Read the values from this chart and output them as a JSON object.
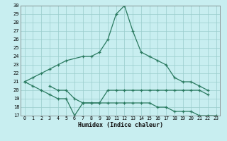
{
  "xlabel": "Humidex (Indice chaleur)",
  "line1_x": [
    0,
    1,
    2,
    3,
    4,
    5,
    7,
    8,
    9,
    10,
    11,
    12,
    13,
    14,
    15,
    16,
    17,
    18,
    19,
    20,
    21,
    22
  ],
  "line1_y": [
    21,
    21.5,
    22,
    22.5,
    23,
    23.5,
    24,
    24,
    24.5,
    26,
    29,
    30,
    27,
    24.5,
    24,
    23.5,
    23,
    21.5,
    21,
    21,
    20.5,
    20
  ],
  "line2_x": [
    0,
    1,
    2,
    3,
    4,
    5,
    6,
    7,
    8,
    9,
    10,
    11,
    12,
    13,
    14,
    15,
    16,
    17,
    18,
    19,
    20,
    21,
    22,
    23
  ],
  "line2_y": [
    21,
    20.5,
    20,
    19.5,
    19,
    19,
    17,
    18.5,
    18.5,
    18.5,
    18.5,
    18.5,
    18.5,
    18.5,
    18.5,
    18.5,
    18,
    18,
    17.5,
    17.5,
    17.5,
    17,
    17,
    17
  ],
  "line3_x": [
    3,
    4,
    5,
    6,
    7,
    8,
    9,
    10,
    11,
    12,
    13,
    14,
    15,
    16,
    17,
    18,
    19,
    20,
    21,
    22
  ],
  "line3_y": [
    20.5,
    20,
    20,
    19,
    18.5,
    18.5,
    18.5,
    20,
    20,
    20,
    20,
    20,
    20,
    20,
    20,
    20,
    20,
    20,
    20,
    19.5
  ],
  "color": "#2A7A60",
  "bg_color": "#C8EEF0",
  "grid_color": "#99CCCC",
  "ylim": [
    17,
    30
  ],
  "xlim": [
    -0.5,
    23.5
  ],
  "yticks": [
    17,
    18,
    19,
    20,
    21,
    22,
    23,
    24,
    25,
    26,
    27,
    28,
    29,
    30
  ],
  "xticks": [
    0,
    1,
    2,
    3,
    4,
    5,
    6,
    7,
    8,
    9,
    10,
    11,
    12,
    13,
    14,
    15,
    16,
    17,
    18,
    19,
    20,
    21,
    22,
    23
  ]
}
